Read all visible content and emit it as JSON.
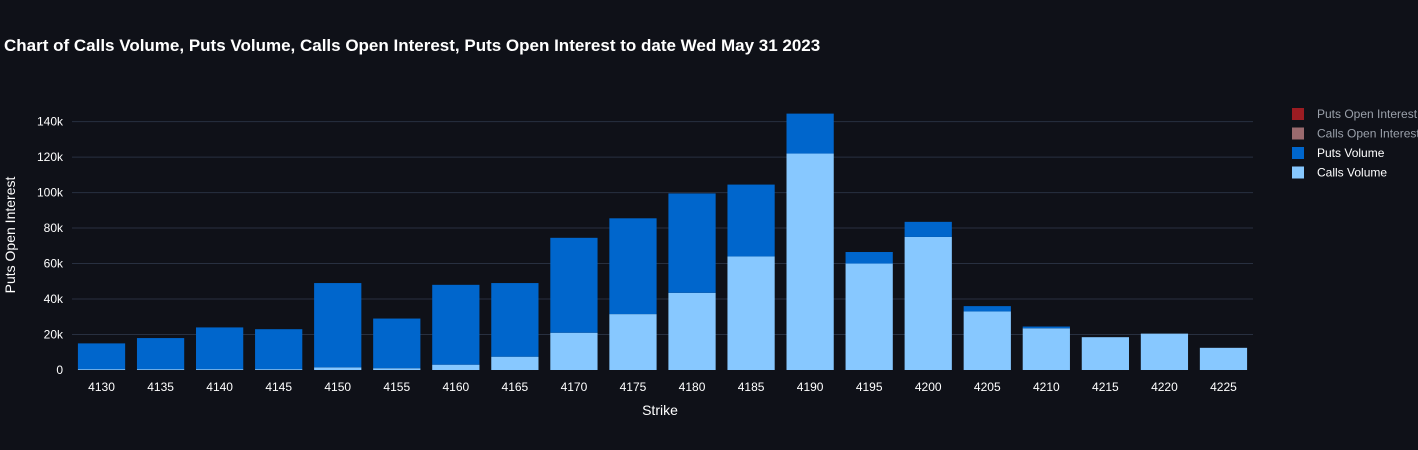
{
  "chart_data": {
    "type": "bar",
    "title": "Chart of Calls Volume, Puts Volume, Calls Open Interest, Puts Open Interest to date Wed May 31 2023",
    "xlabel": "Strike",
    "ylabel": "Puts Open Interest",
    "categories": [
      "4130",
      "4135",
      "4140",
      "4145",
      "4150",
      "4155",
      "4160",
      "4165",
      "4170",
      "4175",
      "4180",
      "4185",
      "4190",
      "4195",
      "4200",
      "4205",
      "4210",
      "4215",
      "4220",
      "4225"
    ],
    "ylim": [
      0,
      145000
    ],
    "y_ticks": [
      0,
      20000,
      40000,
      60000,
      80000,
      100000,
      120000,
      140000
    ],
    "y_tick_labels": [
      "0",
      "20k",
      "40k",
      "60k",
      "80k",
      "100k",
      "120k",
      "140k"
    ],
    "stacked": true,
    "grid": true,
    "legend_position": "right",
    "series": [
      {
        "name": "Calls Volume",
        "color": "#87c8ff",
        "values": [
          500,
          500,
          500,
          500,
          1500,
          1000,
          3000,
          7500,
          21000,
          31500,
          43500,
          64000,
          122000,
          60000,
          75000,
          33000,
          23500,
          18500,
          20500,
          12500
        ]
      },
      {
        "name": "Puts Volume",
        "color": "#0066cc",
        "values": [
          14500,
          17500,
          23500,
          22500,
          47500,
          28000,
          45000,
          41500,
          53500,
          54000,
          56000,
          40500,
          22500,
          6500,
          8500,
          3000,
          1000,
          0,
          0,
          0
        ]
      },
      {
        "name": "Calls Open Interest",
        "color": "#9a6a6e",
        "values": [
          0,
          0,
          0,
          0,
          0,
          0,
          0,
          0,
          0,
          0,
          0,
          0,
          0,
          0,
          0,
          0,
          0,
          0,
          0,
          0
        ]
      },
      {
        "name": "Puts Open Interest",
        "color": "#9b1c22",
        "values": [
          0,
          0,
          0,
          0,
          0,
          0,
          0,
          0,
          0,
          0,
          0,
          0,
          0,
          0,
          0,
          0,
          0,
          0,
          0,
          0
        ]
      }
    ],
    "legend": [
      {
        "name": "Puts Open Interest",
        "color": "#9b1c22",
        "text_color": "#9aa0aa"
      },
      {
        "name": "Calls Open Interest",
        "color": "#9a6a6e",
        "text_color": "#9aa0aa"
      },
      {
        "name": "Puts Volume",
        "color": "#0066cc",
        "text_color": "#ffffff"
      },
      {
        "name": "Calls Volume",
        "color": "#87c8ff",
        "text_color": "#ffffff"
      }
    ]
  }
}
